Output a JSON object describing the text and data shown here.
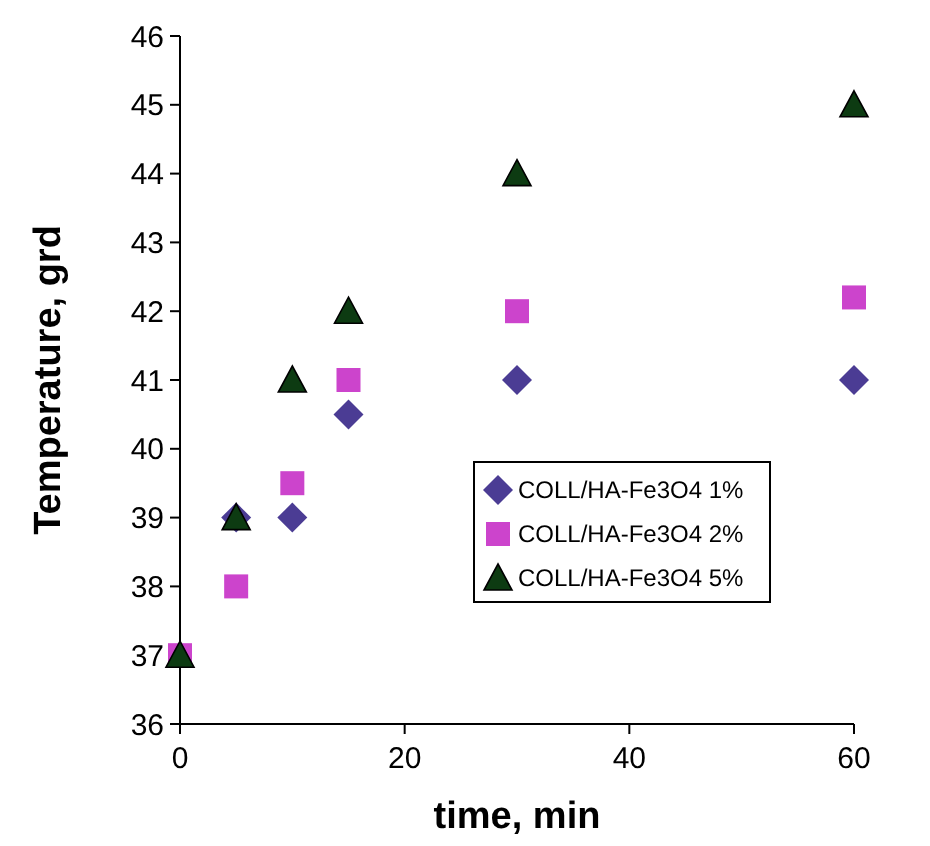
{
  "chart_data": {
    "type": "scatter",
    "xlabel": "time, min",
    "ylabel": "Temperature, grd",
    "x": [
      0,
      5,
      10,
      15,
      30,
      60
    ],
    "series": [
      {
        "name": "COLL/HA-Fe3O4 1%",
        "color": "#4b3c94",
        "marker": "diamond",
        "values": [
          null,
          39,
          39,
          40.5,
          41,
          41
        ]
      },
      {
        "name": "COLL/HA-Fe3O4 2%",
        "color": "#cc44cc",
        "marker": "square",
        "values": [
          37,
          38,
          39.5,
          41,
          42,
          42.2
        ]
      },
      {
        "name": "COLL/HA-Fe3O4 5%",
        "color": "#0d3b12",
        "marker": "triangle",
        "values": [
          37,
          39,
          41,
          42,
          44,
          45
        ]
      }
    ],
    "xlim": [
      0,
      60
    ],
    "xticks": [
      0,
      20,
      40,
      60
    ],
    "ylim": [
      36,
      46
    ],
    "yticks": [
      36,
      37,
      38,
      39,
      40,
      41,
      42,
      43,
      44,
      45,
      46
    ],
    "grid": false,
    "legend": "right"
  }
}
